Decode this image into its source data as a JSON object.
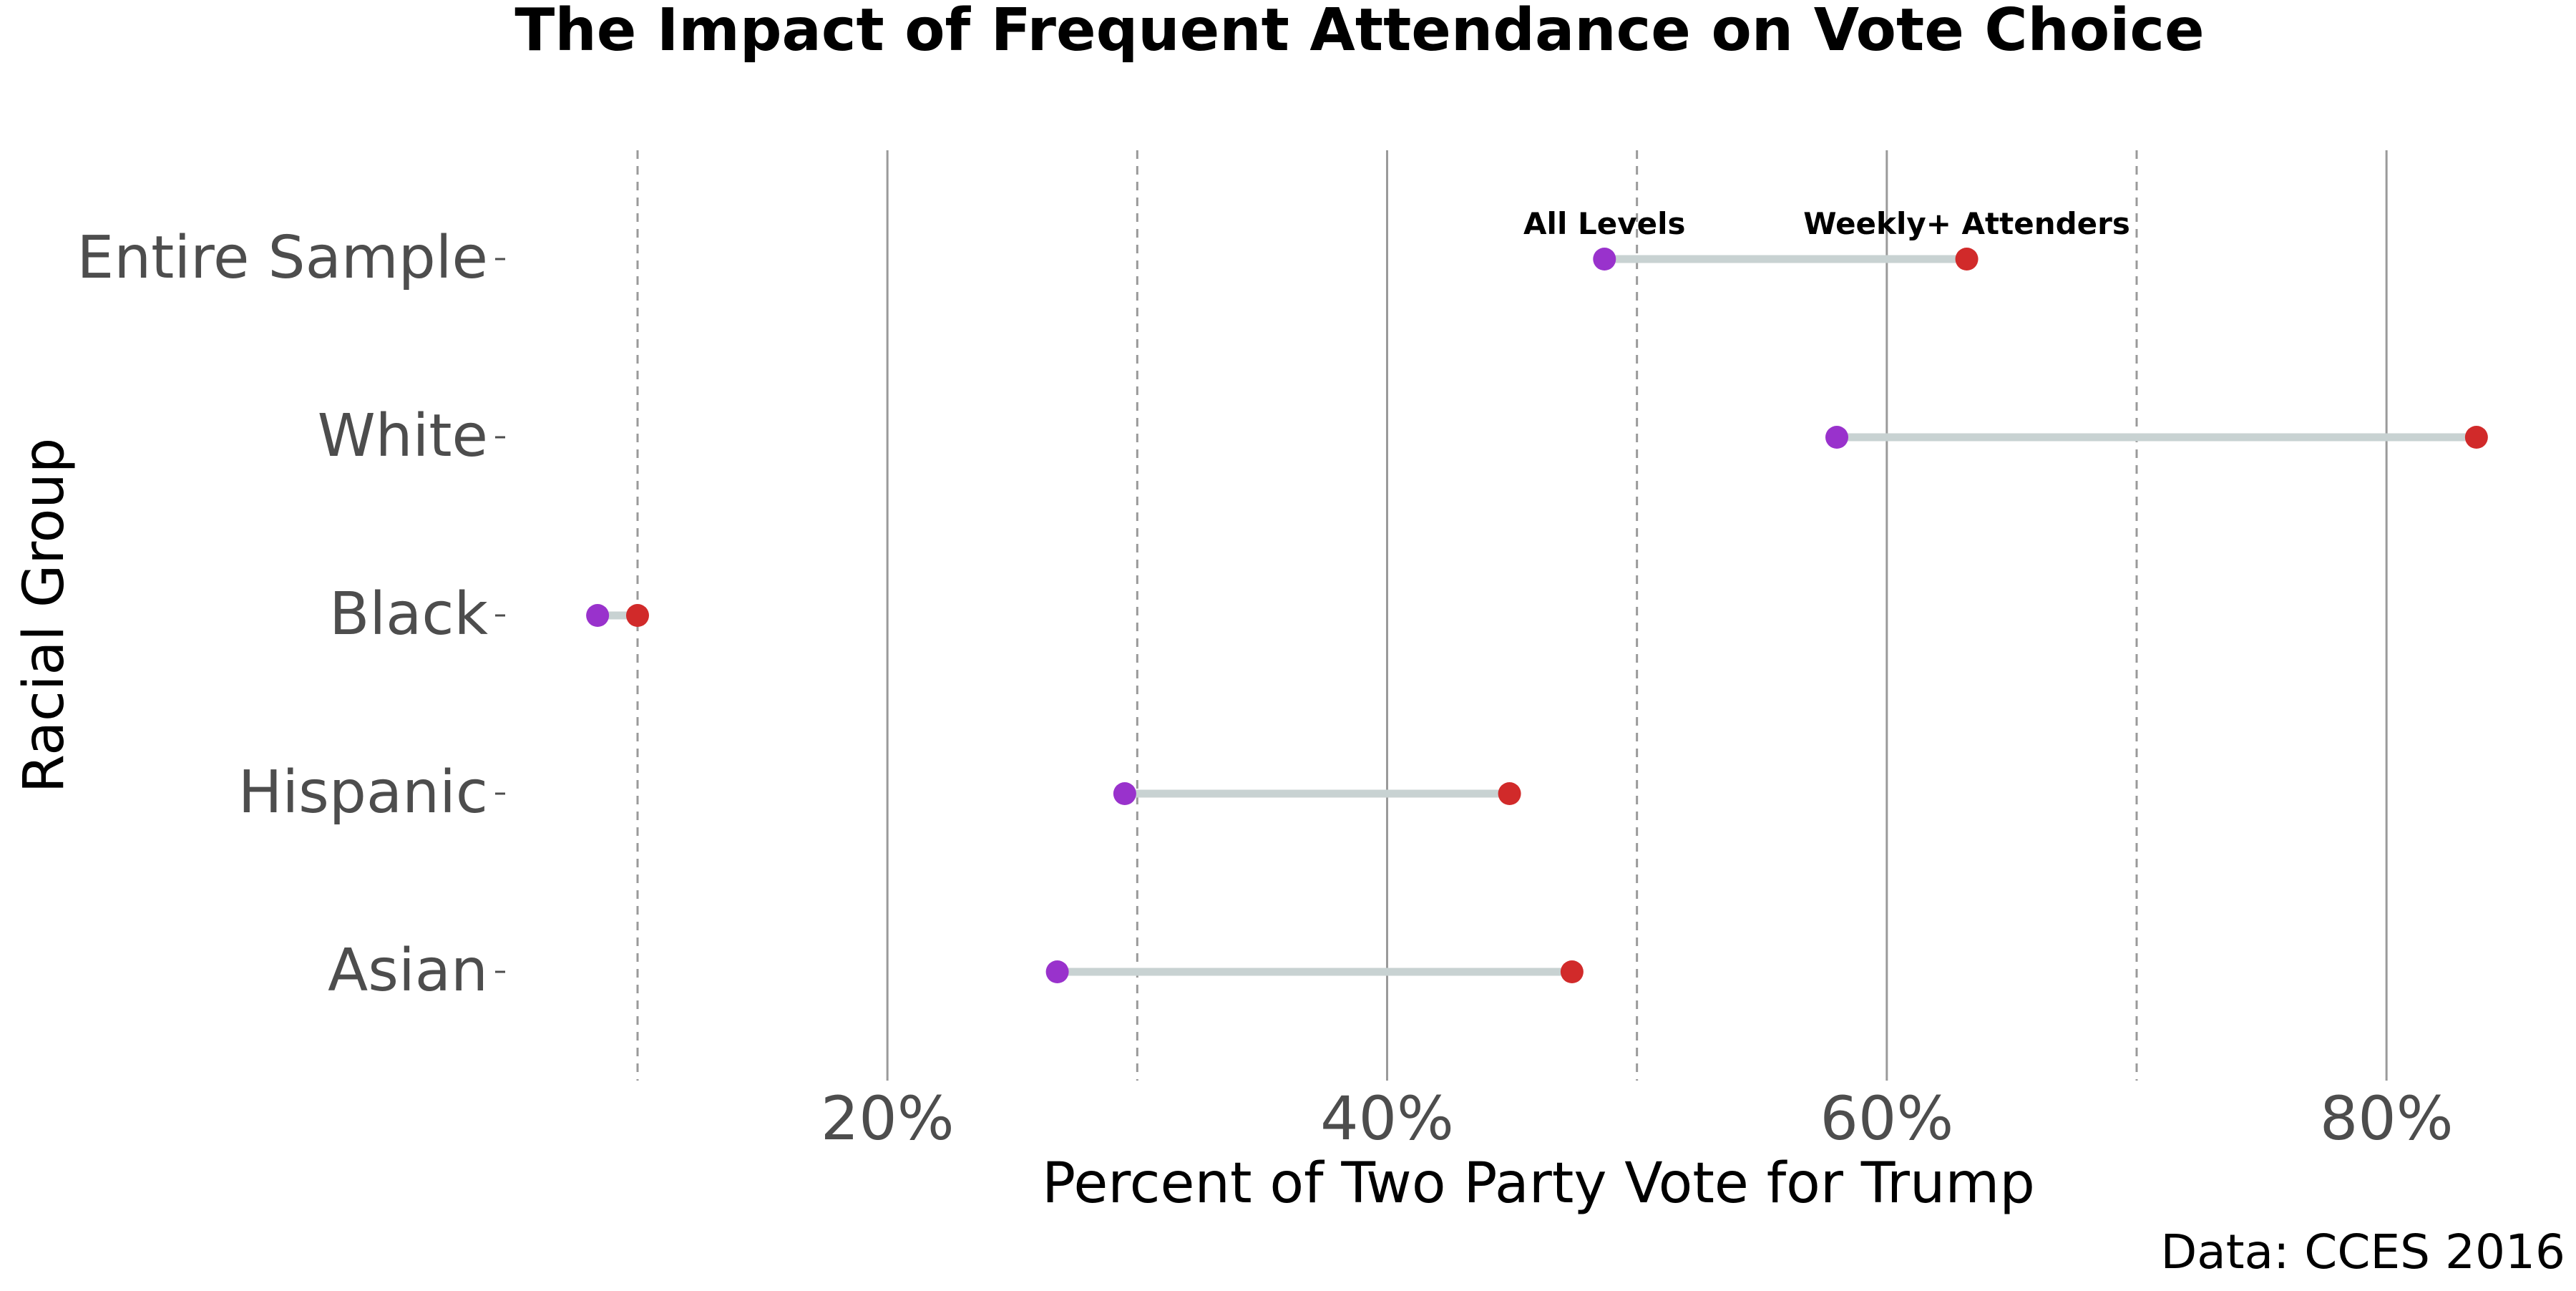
{
  "chart_data": {
    "type": "dumbbell",
    "title": "The Impact of Frequent Attendance on Vote Choice",
    "xlabel": "Percent of Two Party Vote for Trump",
    "ylabel": "Racial Group",
    "caption": "Data: CCES 2016",
    "x_tick_values": [
      0.2,
      0.4,
      0.6,
      0.8
    ],
    "x_tick_labels": [
      "20%",
      "40%",
      "60%",
      "80%"
    ],
    "x_minor_gridlines": [
      0.1,
      0.3,
      0.5,
      0.7
    ],
    "xlim": [
      0.0,
      0.83
    ],
    "categories": [
      "Entire Sample",
      "White",
      "Black",
      "Hispanic",
      "Asian"
    ],
    "series": [
      {
        "name": "All Levels",
        "color": "#9932cc",
        "values": [
          0.487,
          0.58,
          0.084,
          0.295,
          0.268
        ]
      },
      {
        "name": "Weekly+ Attenders",
        "color": "#d12a2a",
        "values": [
          0.632,
          0.836,
          0.1,
          0.449,
          0.474
        ]
      }
    ],
    "connector_color": "#c8d2d2",
    "annotation_row": "Entire Sample",
    "grid": true,
    "legend": "none"
  }
}
